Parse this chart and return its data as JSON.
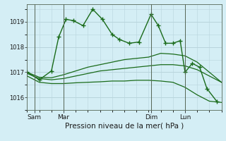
{
  "background_color": "#d4eef5",
  "grid_color": "#b8d4dc",
  "line_color": "#1a6b1a",
  "xlabel": "Pression niveau de la mer( hPa )",
  "xlim": [
    0,
    80
  ],
  "ylim": [
    1015.5,
    1019.7
  ],
  "yticks": [
    1016,
    1017,
    1018,
    1019
  ],
  "ytick_fontsize": 6,
  "xtick_fontsize": 6.5,
  "xlabel_fontsize": 7.5,
  "day_labels": [
    "Sam",
    "Mar",
    "Dim",
    "Lun"
  ],
  "day_positions": [
    3,
    15,
    51,
    65
  ],
  "vlines": [
    3,
    15,
    51,
    65
  ],
  "series": [
    {
      "x": [
        0,
        5,
        10,
        15,
        20,
        25,
        30,
        35,
        40,
        45,
        50,
        55,
        60,
        65,
        70,
        75,
        80
      ],
      "y": [
        1016.85,
        1016.6,
        1016.55,
        1016.55,
        1016.58,
        1016.6,
        1016.62,
        1016.65,
        1016.65,
        1016.68,
        1016.68,
        1016.65,
        1016.6,
        1016.4,
        1016.1,
        1015.85,
        1015.8
      ],
      "marker": false,
      "lw": 0.9,
      "ls": "-"
    },
    {
      "x": [
        0,
        5,
        10,
        15,
        20,
        25,
        30,
        35,
        40,
        45,
        50,
        55,
        60,
        65,
        70,
        75,
        80
      ],
      "y": [
        1016.95,
        1016.75,
        1016.7,
        1016.75,
        1016.85,
        1016.95,
        1017.05,
        1017.1,
        1017.15,
        1017.2,
        1017.25,
        1017.3,
        1017.3,
        1017.25,
        1017.1,
        1016.85,
        1016.6
      ],
      "marker": false,
      "lw": 0.9,
      "ls": "-"
    },
    {
      "x": [
        0,
        5,
        10,
        15,
        20,
        25,
        30,
        35,
        40,
        45,
        50,
        55,
        60,
        65,
        70,
        75,
        80
      ],
      "y": [
        1017.0,
        1016.8,
        1016.78,
        1016.9,
        1017.05,
        1017.2,
        1017.3,
        1017.4,
        1017.5,
        1017.55,
        1017.6,
        1017.75,
        1017.72,
        1017.65,
        1017.4,
        1017.0,
        1016.6
      ],
      "marker": false,
      "lw": 0.9,
      "ls": "-"
    },
    {
      "x": [
        0,
        5,
        10,
        13,
        16,
        19,
        23,
        27,
        31,
        35,
        38,
        42,
        46,
        51,
        54,
        57,
        60,
        63,
        65,
        68,
        71,
        74,
        78
      ],
      "y": [
        1017.0,
        1016.7,
        1017.05,
        1018.4,
        1019.1,
        1019.05,
        1018.85,
        1019.5,
        1019.1,
        1018.5,
        1018.3,
        1018.15,
        1018.2,
        1019.3,
        1018.85,
        1018.15,
        1018.15,
        1018.25,
        1017.0,
        1017.35,
        1017.2,
        1016.35,
        1015.85
      ],
      "marker": true,
      "lw": 1.0,
      "ls": "-"
    }
  ]
}
